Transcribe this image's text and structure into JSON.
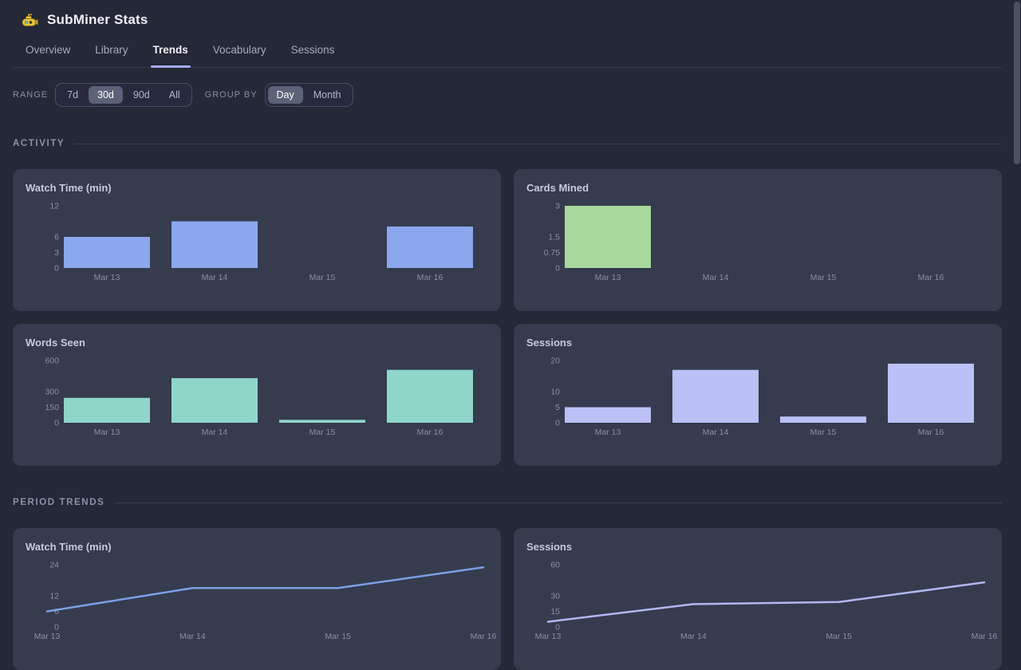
{
  "theme": {
    "page_bg": "#242837",
    "card_bg": "#363B4E",
    "accent": "#A4A9F2",
    "scrollbar": "#4A5164"
  },
  "header": {
    "title": "SubMiner Stats",
    "logo_icon": "submarine-icon"
  },
  "tabs": [
    {
      "label": "Overview",
      "active": false
    },
    {
      "label": "Library",
      "active": false
    },
    {
      "label": "Trends",
      "active": true
    },
    {
      "label": "Vocabulary",
      "active": false
    },
    {
      "label": "Sessions",
      "active": false
    }
  ],
  "filters": {
    "range": {
      "label": "RANGE",
      "options": [
        "7d",
        "30d",
        "90d",
        "All"
      ],
      "selected": "30d"
    },
    "group_by": {
      "label": "GROUP BY",
      "options": [
        "Day",
        "Month"
      ],
      "selected": "Day"
    }
  },
  "sections": [
    {
      "title": "ACTIVITY"
    },
    {
      "title": "PERIOD TRENDS"
    }
  ],
  "chart_data": [
    {
      "type": "bar",
      "section": "ACTIVITY",
      "title": "Watch Time (min)",
      "categories": [
        "Mar 13",
        "Mar 14",
        "Mar 15",
        "Mar 16"
      ],
      "values": [
        6,
        9,
        0,
        8
      ],
      "yticks": [
        "12",
        "6",
        "3",
        "0"
      ],
      "ylim": [
        0,
        12
      ],
      "color": "#8BA7ED",
      "grid": false,
      "legend": false
    },
    {
      "type": "bar",
      "section": "ACTIVITY",
      "title": "Cards Mined",
      "categories": [
        "Mar 13",
        "Mar 14",
        "Mar 15",
        "Mar 16"
      ],
      "values": [
        3,
        0,
        0,
        0
      ],
      "yticks": [
        "3",
        "1.5",
        "0.75",
        "0"
      ],
      "ylim": [
        0,
        3
      ],
      "color": "#A6D89B",
      "grid": false,
      "legend": false
    },
    {
      "type": "bar",
      "section": "ACTIVITY",
      "title": "Words Seen",
      "categories": [
        "Mar 13",
        "Mar 14",
        "Mar 15",
        "Mar 16"
      ],
      "values": [
        240,
        430,
        28,
        510
      ],
      "yticks": [
        "600",
        "300",
        "150",
        "0"
      ],
      "ylim": [
        0,
        600
      ],
      "color": "#8FD6CA",
      "grid": false,
      "legend": false
    },
    {
      "type": "bar",
      "section": "ACTIVITY",
      "title": "Sessions",
      "categories": [
        "Mar 13",
        "Mar 14",
        "Mar 15",
        "Mar 16"
      ],
      "values": [
        5,
        17,
        2,
        19
      ],
      "yticks": [
        "20",
        "10",
        "5",
        "0"
      ],
      "ylim": [
        0,
        20
      ],
      "color": "#BBC0F6",
      "grid": false,
      "legend": false
    },
    {
      "type": "line",
      "section": "PERIOD TRENDS",
      "title": "Watch Time (min)",
      "categories": [
        "Mar 13",
        "Mar 14",
        "Mar 15",
        "Mar 16"
      ],
      "values": [
        6,
        15,
        15,
        23
      ],
      "yticks": [
        "24",
        "12",
        "6",
        "0"
      ],
      "ylim": [
        0,
        24
      ],
      "color": "#7A9FE6",
      "grid": false,
      "legend": false
    },
    {
      "type": "line",
      "section": "PERIOD TRENDS",
      "title": "Sessions",
      "categories": [
        "Mar 13",
        "Mar 14",
        "Mar 15",
        "Mar 16"
      ],
      "values": [
        5,
        22,
        24,
        43
      ],
      "yticks": [
        "60",
        "30",
        "15",
        "0"
      ],
      "ylim": [
        0,
        60
      ],
      "color": "#B2B7F3",
      "grid": false,
      "legend": false
    }
  ]
}
